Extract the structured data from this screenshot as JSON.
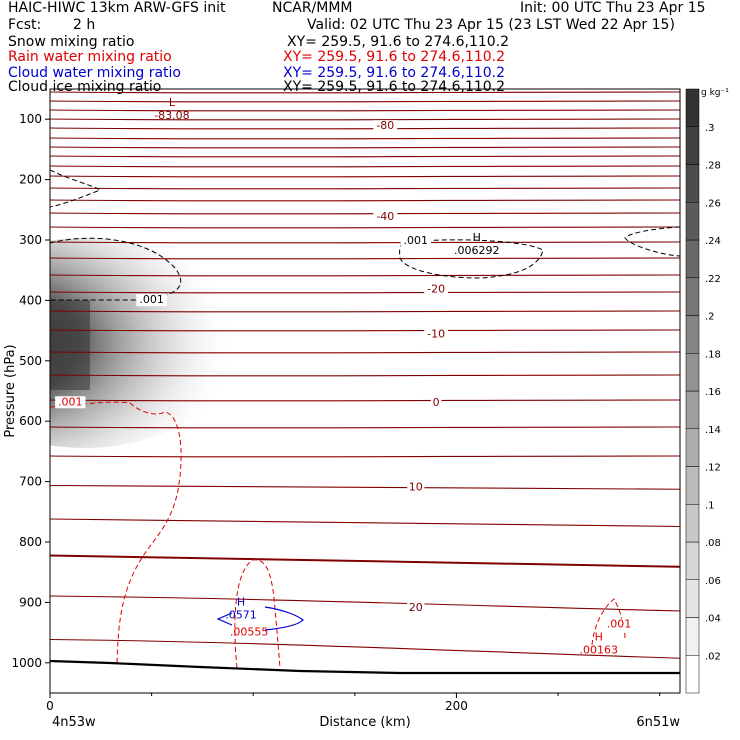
{
  "header": {
    "title": "HAIC-HIWC 13km ARW-GFS init",
    "center": "NCAR/MMM",
    "init": "Init: 00 UTC Thu 23 Apr 15",
    "fcst_label": "Fcst:",
    "fcst_value": "2 h",
    "valid": "Valid: 02 UTC Thu 23 Apr 15 (23 LST Wed 22 Apr 15)",
    "fields": [
      {
        "name": "Snow mixing ratio",
        "xy": "XY= 259.5, 91.6 to 274.6,110.2",
        "color": "#000000"
      },
      {
        "name": "Rain water mixing ratio",
        "xy": "XY= 259.5, 91.6 to 274.6,110.2",
        "color": "#e00000"
      },
      {
        "name": "Cloud water mixing ratio",
        "xy": "XY= 259.5, 91.6 to 274.6,110.2",
        "color": "#0000d0"
      },
      {
        "name": "Cloud ice mixing ratio",
        "xy": "XY= 259.5, 91.6 to 274.6,110.2",
        "color": "#000000"
      }
    ]
  },
  "chart_data": {
    "type": "contour cross-section",
    "xlabel": "Distance (km)",
    "ylabel": "Pressure (hPa)",
    "x_ticks": [
      0,
      200
    ],
    "y_ticks": [
      100,
      200,
      300,
      400,
      500,
      600,
      700,
      800,
      900,
      1000
    ],
    "xlim": [
      0,
      310
    ],
    "ylim": [
      1050,
      50
    ],
    "left_endpoint": "4n53w",
    "right_endpoint": "6n51w",
    "colorbar": {
      "unit": "g kg⁻¹",
      "levels": [
        0.02,
        0.04,
        0.06,
        0.08,
        0.1,
        0.12,
        0.14,
        0.16,
        0.18,
        0.2,
        0.22,
        0.24,
        0.26,
        0.28,
        0.3
      ],
      "labels": [
        ".02",
        ".04",
        ".06",
        ".08",
        ".1",
        ".12",
        ".14",
        ".16",
        ".18",
        ".2",
        ".22",
        ".24",
        ".26",
        ".28",
        ".3"
      ]
    },
    "temperature_labels": [
      {
        "text": "-80",
        "x": 165,
        "p": 110
      },
      {
        "text": "-40",
        "x": 165,
        "p": 260
      },
      {
        "text": "-20",
        "x": 190,
        "p": 380
      },
      {
        "text": "-10",
        "x": 190,
        "p": 455
      },
      {
        "text": "0",
        "x": 190,
        "p": 568
      },
      {
        "text": "10",
        "x": 180,
        "p": 708
      },
      {
        "text": "20",
        "x": 180,
        "p": 908
      }
    ],
    "extrema_labels": [
      {
        "mark": "L",
        "value": "-83.08",
        "x": 60,
        "p": 95,
        "color": "#800000"
      },
      {
        "mark": "H",
        "value": ".006292",
        "x": 210,
        "p": 318,
        "color": "#000000"
      },
      {
        "mark": "H",
        "value": ".0571",
        "x": 94,
        "p": 922,
        "color": "#0000d0"
      },
      {
        "mark": "",
        "value": ".00555",
        "x": 98,
        "p": 950,
        "color": "#e00000"
      },
      {
        "mark": "H",
        "value": ".00163",
        "x": 270,
        "p": 980,
        "color": "#e00000"
      }
    ],
    "contour_labels": [
      {
        "text": ".001",
        "x": 50,
        "p": 398,
        "color": "#000000"
      },
      {
        "text": ".001",
        "x": 180,
        "p": 300,
        "color": "#000000"
      },
      {
        "text": ".001",
        "x": 10,
        "p": 567,
        "color": "#e00000"
      },
      {
        "text": ".001",
        "x": 280,
        "p": 935,
        "color": "#e00000"
      }
    ],
    "colors": {
      "temperature": "#800000",
      "snow_shading": "#303030",
      "cloud_ice": "#000000",
      "rain": "#e00000",
      "cloud_water": "#0000d0",
      "terrain": "#000000"
    }
  }
}
